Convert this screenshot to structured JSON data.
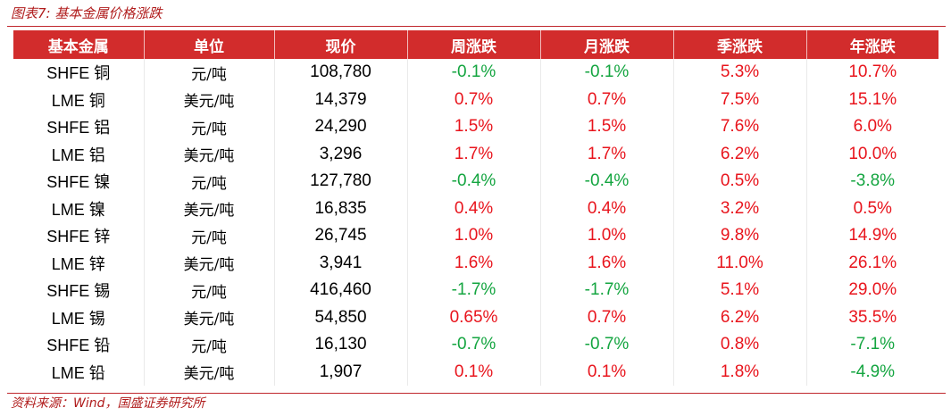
{
  "caption": "图表7:  基本金属价格涨跌",
  "source": "资料来源：Wind，国盛证券研究所",
  "colors": {
    "header_bg": "#d22c2c",
    "positive": "#e8141c",
    "negative": "#14a540",
    "accent": "#c0272d"
  },
  "table": {
    "headers": [
      "基本金属",
      "单位",
      "现价",
      "周涨跌",
      "月涨跌",
      "季涨跌",
      "年涨跌"
    ],
    "rows": [
      {
        "metal": "SHFE 铜",
        "unit": "元/吨",
        "price": "108,780",
        "week": "-0.1%",
        "month": "-0.1%",
        "quarter": "5.3%",
        "year": "10.7%"
      },
      {
        "metal": "LME 铜",
        "unit": "美元/吨",
        "price": "14,379",
        "week": "0.7%",
        "month": "0.7%",
        "quarter": "7.5%",
        "year": "15.1%"
      },
      {
        "metal": "SHFE 铝",
        "unit": "元/吨",
        "price": "24,290",
        "week": "1.5%",
        "month": "1.5%",
        "quarter": "7.6%",
        "year": "6.0%"
      },
      {
        "metal": "LME 铝",
        "unit": "美元/吨",
        "price": "3,296",
        "week": "1.7%",
        "month": "1.7%",
        "quarter": "6.2%",
        "year": "10.0%"
      },
      {
        "metal": "SHFE 镍",
        "unit": "元/吨",
        "price": "127,780",
        "week": "-0.4%",
        "month": "-0.4%",
        "quarter": "0.5%",
        "year": "-3.8%"
      },
      {
        "metal": "LME 镍",
        "unit": "美元/吨",
        "price": "16,835",
        "week": "0.4%",
        "month": "0.4%",
        "quarter": "3.2%",
        "year": "0.5%"
      },
      {
        "metal": "SHFE 锌",
        "unit": "元/吨",
        "price": "26,745",
        "week": "1.0%",
        "month": "1.0%",
        "quarter": "9.8%",
        "year": "14.9%"
      },
      {
        "metal": "LME 锌",
        "unit": "美元/吨",
        "price": "3,941",
        "week": "1.6%",
        "month": "1.6%",
        "quarter": "11.0%",
        "year": "26.1%"
      },
      {
        "metal": "SHFE 锡",
        "unit": "元/吨",
        "price": "416,460",
        "week": "-1.7%",
        "month": "-1.7%",
        "quarter": "5.1%",
        "year": "29.0%"
      },
      {
        "metal": "LME 锡",
        "unit": "美元/吨",
        "price": "54,850",
        "week": "0.65%",
        "month": "0.7%",
        "quarter": "6.2%",
        "year": "35.5%"
      },
      {
        "metal": "SHFE 铅",
        "unit": "元/吨",
        "price": "16,130",
        "week": "-0.7%",
        "month": "-0.7%",
        "quarter": "0.8%",
        "year": "-7.1%"
      },
      {
        "metal": "LME 铅",
        "unit": "美元/吨",
        "price": "1,907",
        "week": "0.1%",
        "month": "0.1%",
        "quarter": "1.8%",
        "year": "-4.9%"
      }
    ]
  }
}
